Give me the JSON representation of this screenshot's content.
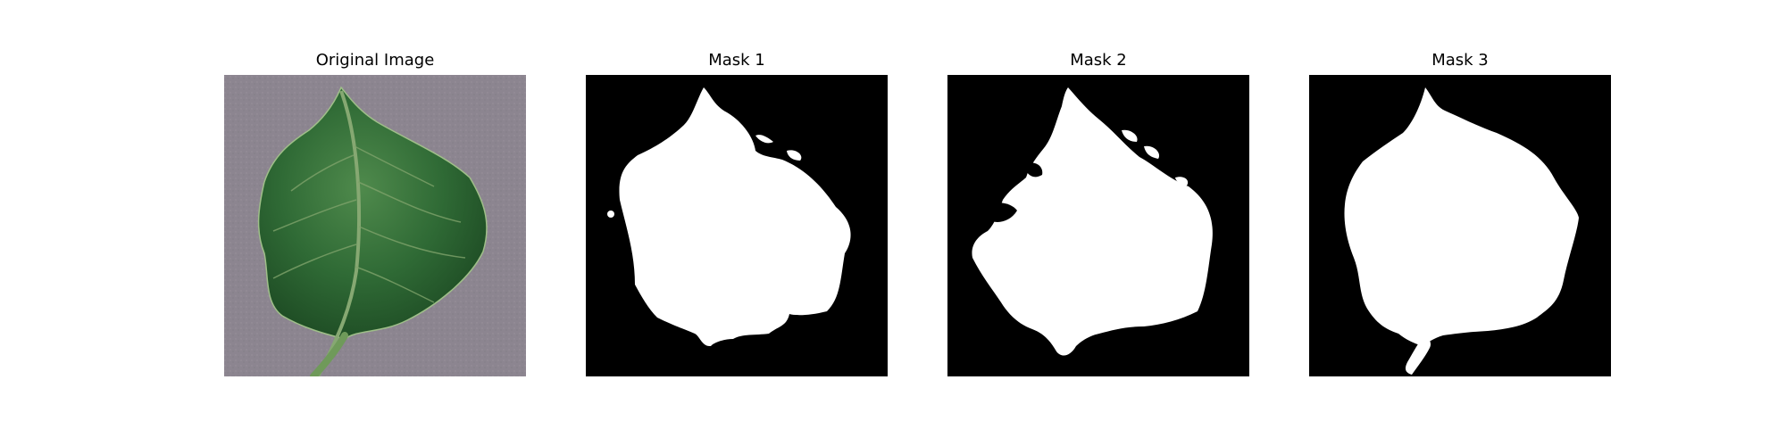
{
  "panels": [
    {
      "title": "Original Image",
      "kind": "photo"
    },
    {
      "title": "Mask 1",
      "kind": "mask"
    },
    {
      "title": "Mask 2",
      "kind": "mask"
    },
    {
      "title": "Mask 3",
      "kind": "mask"
    }
  ],
  "colors": {
    "background": "#ffffff",
    "mask_background": "#000000",
    "mask_foreground": "#ffffff",
    "photo_background": "#8f8791",
    "leaf_dark": "#1f4f26",
    "leaf_mid": "#2f6a35",
    "leaf_light": "#5d8f58",
    "vein": "#8fb07a"
  }
}
